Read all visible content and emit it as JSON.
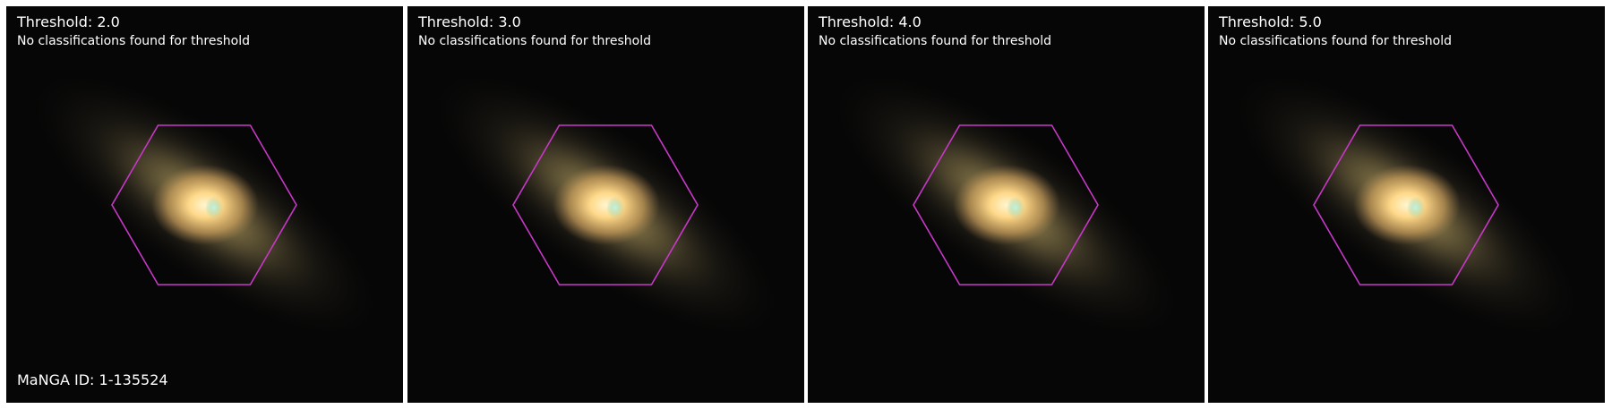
{
  "panels": [
    {
      "title": "Threshold: 2.0",
      "message": "No classifications found for threshold"
    },
    {
      "title": "Threshold: 3.0",
      "message": "No classifications found for threshold"
    },
    {
      "title": "Threshold: 4.0",
      "message": "No classifications found for threshold"
    },
    {
      "title": "Threshold: 5.0",
      "message": "No classifications found for threshold"
    }
  ],
  "manga_id_label": "MaNGA ID: 1-135524",
  "colors": {
    "background": "#060606",
    "galaxy_halo": "#8a7a4a",
    "galaxy_core": "#ffe7a0",
    "core_tint": "#a8f0e0",
    "hexagon": "#c838c8",
    "text": "#ffffff"
  }
}
